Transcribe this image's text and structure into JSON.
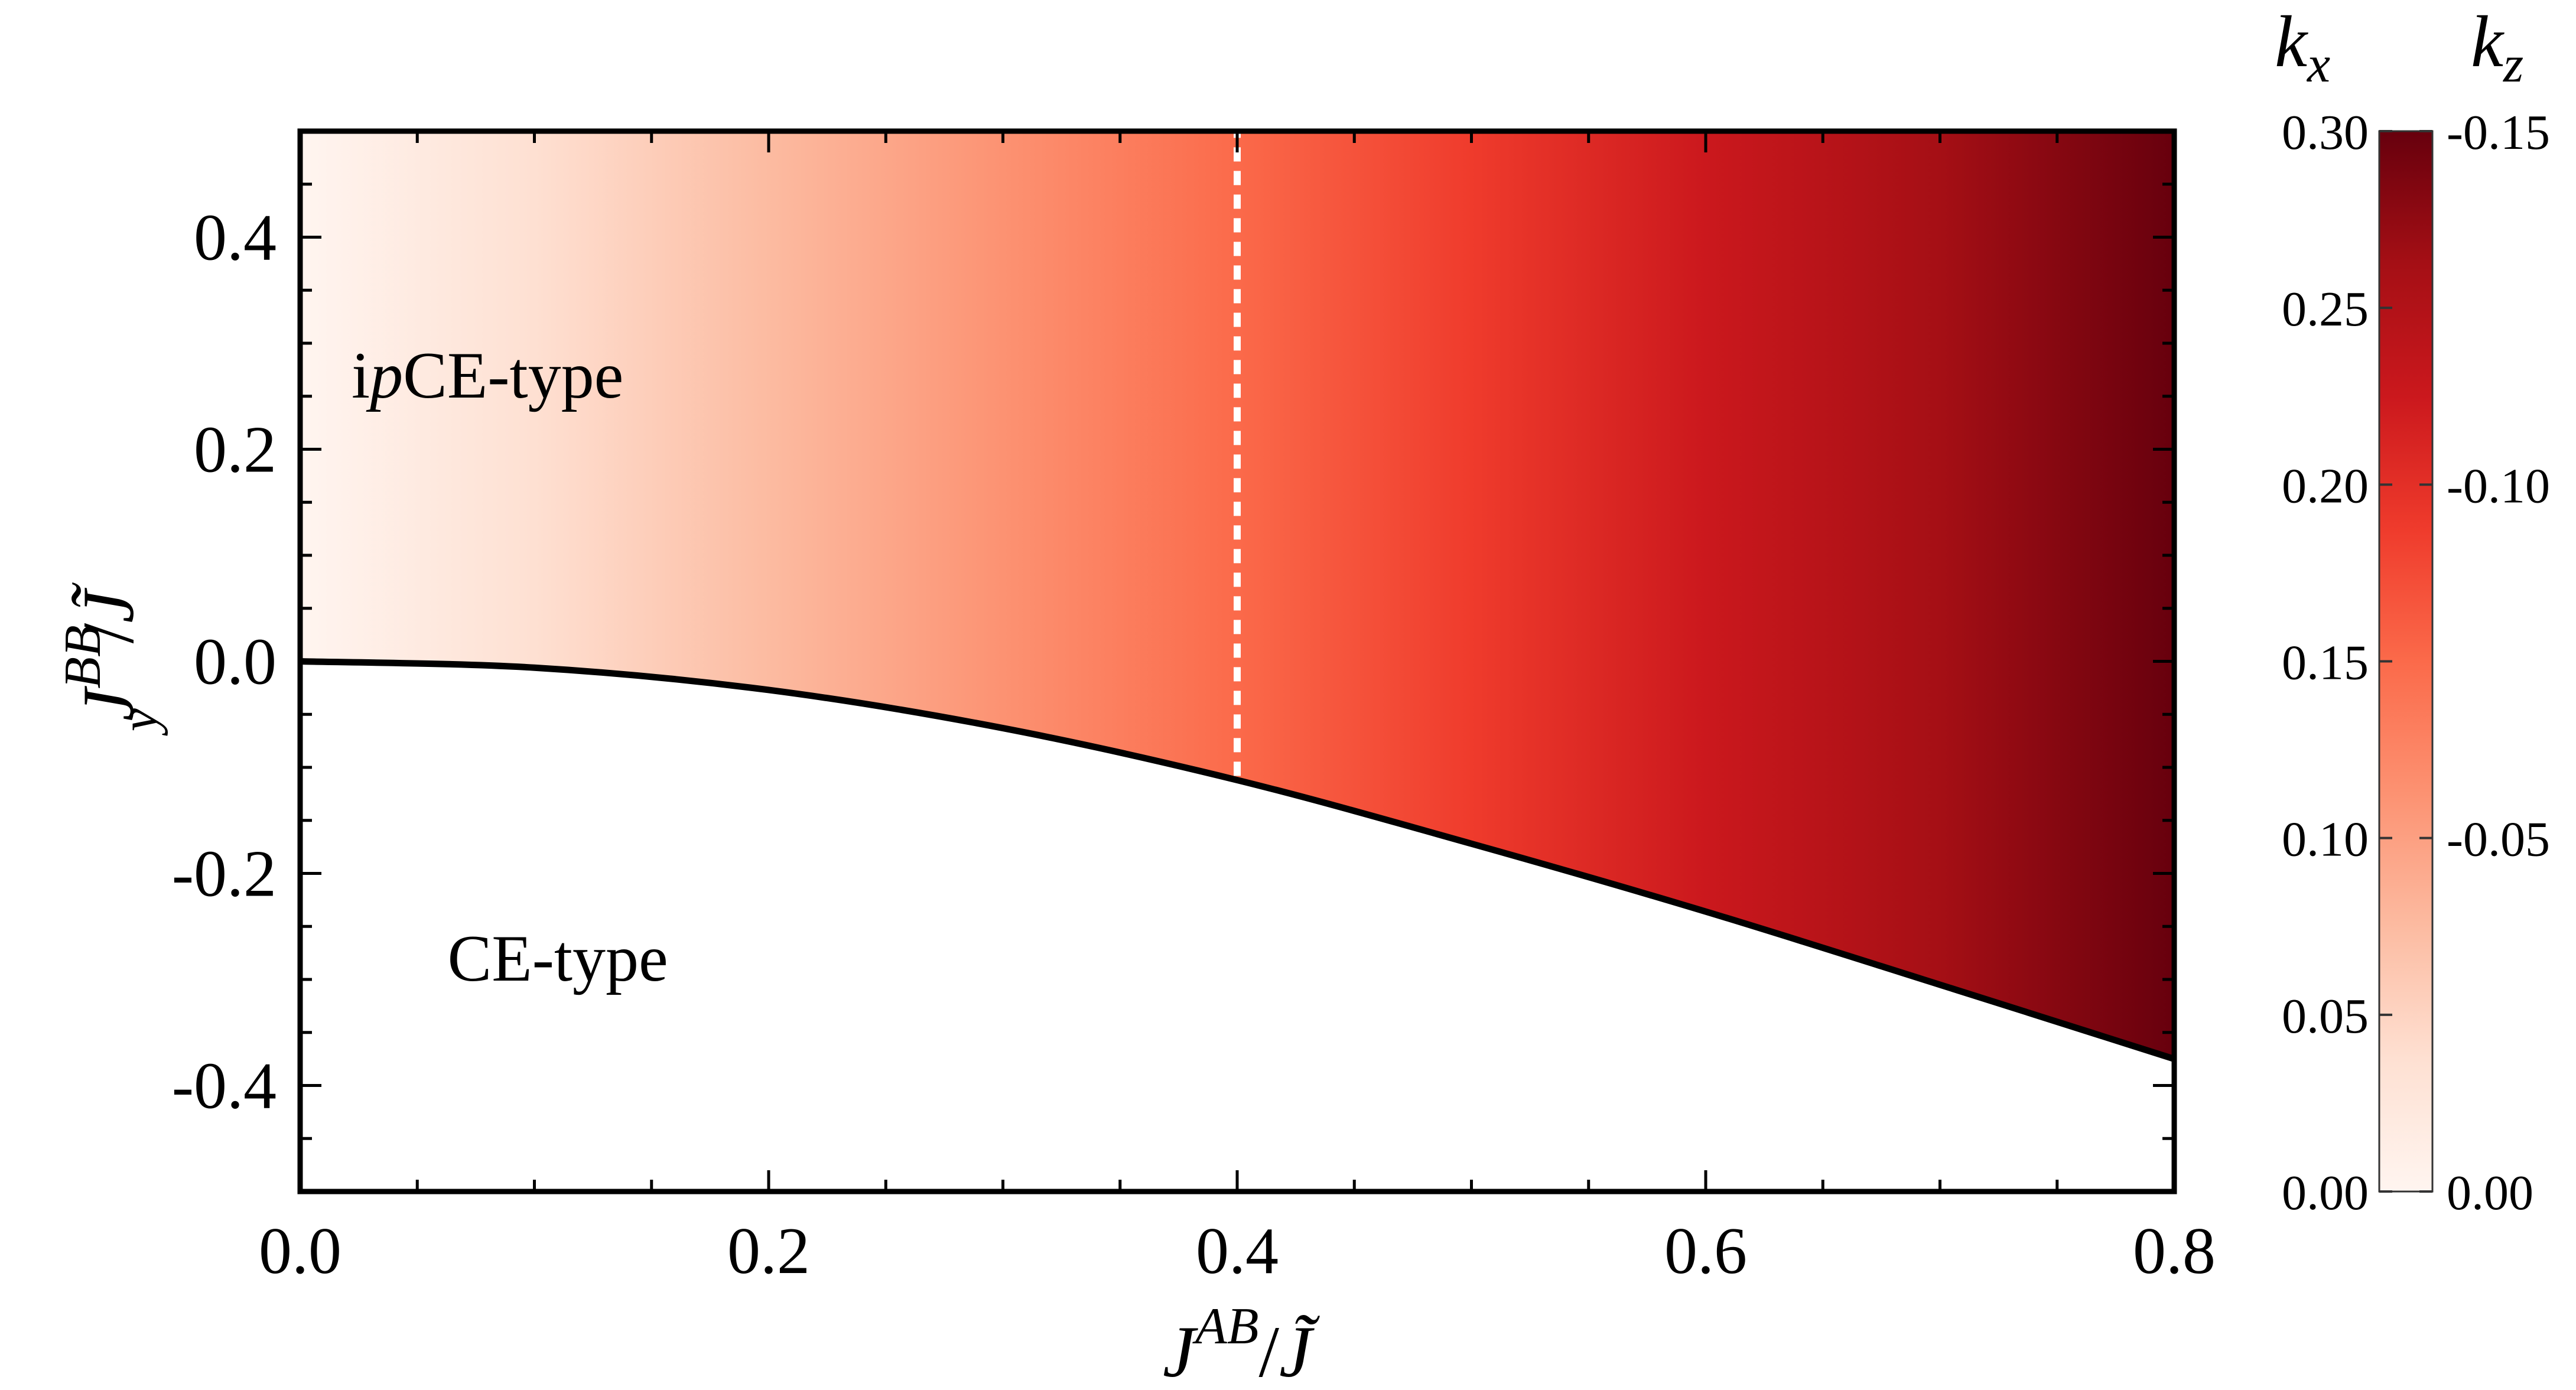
{
  "chart_data": {
    "type": "heatmap",
    "title": "",
    "xlabel": {
      "base": "J",
      "sup": "AB",
      "den": "J̃"
    },
    "ylabel": {
      "base": "J",
      "sup": "BB",
      "sub": "y",
      "den": "J̃"
    },
    "xlim": [
      0.0,
      0.8
    ],
    "ylim": [
      -0.5,
      0.5
    ],
    "xticks": [
      0.0,
      0.2,
      0.4,
      0.6,
      0.8
    ],
    "xtick_labels": [
      "0.0",
      "0.2",
      "0.4",
      "0.6",
      "0.8"
    ],
    "yticks": [
      0.4,
      0.2,
      0.0,
      -0.2,
      -0.4
    ],
    "ytick_labels": [
      "0.4",
      "0.2",
      "0.0",
      "-0.2",
      "-0.4"
    ],
    "regions": [
      {
        "name_prefix": "i",
        "name_italic": "p",
        "name_suffix": "CE-type",
        "x": 0.08,
        "y": 0.27
      },
      {
        "name": "CE-type",
        "x": 0.11,
        "y": -0.28
      }
    ],
    "boundary": {
      "x": [
        0.0,
        0.1,
        0.2,
        0.3,
        0.4,
        0.5,
        0.6,
        0.7,
        0.8
      ],
      "y": [
        0.0,
        -0.006,
        -0.027,
        -0.063,
        -0.112,
        -0.172,
        -0.236,
        -0.305,
        -0.375
      ]
    },
    "dashed_line": {
      "x": 0.4,
      "y_from": -0.108,
      "y_to": 0.5,
      "color": "#ffffff"
    },
    "colorbar": {
      "titles": {
        "left": {
          "base": "k",
          "sub": "x"
        },
        "right": {
          "base": "k",
          "sub": "z"
        }
      },
      "left_ticks": [
        0.0,
        0.05,
        0.1,
        0.15,
        0.2,
        0.25,
        0.3
      ],
      "left_tick_labels": [
        "0.00",
        "0.05",
        "0.10",
        "0.15",
        "0.20",
        "0.25",
        "0.30"
      ],
      "right_ticks": [
        0.0,
        -0.05,
        -0.1,
        -0.15
      ],
      "right_tick_labels": [
        "0.00",
        "-0.05",
        "-0.10",
        "-0.15"
      ],
      "kx_range": [
        0.0,
        0.3
      ],
      "kz_range": [
        0.0,
        -0.15
      ]
    },
    "kx_vs_x": {
      "x": [
        0.0,
        0.8
      ],
      "kx": [
        0.0,
        0.3
      ]
    },
    "colormap": [
      "#fff5f0",
      "#fee0d2",
      "#fcbba1",
      "#fc9272",
      "#fb6a4a",
      "#ef3b2c",
      "#cb181d",
      "#a50f15",
      "#67000d"
    ]
  }
}
